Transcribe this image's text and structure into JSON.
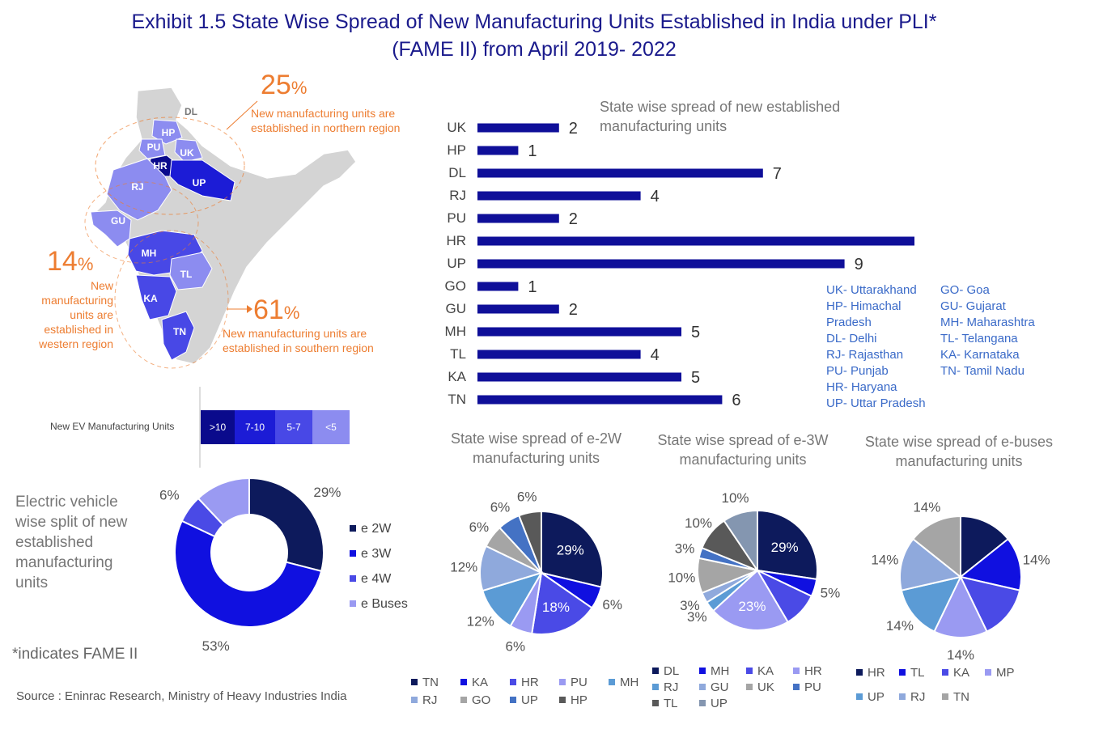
{
  "title_line1": "Exhibit 1.5 State Wise Spread of New Manufacturing Units Established in India under PLI*",
  "title_line2": "(FAME II) from April 2019- 2022",
  "map": {
    "labels": [
      "DL",
      "HP",
      "PU",
      "UK",
      "HR",
      "UP",
      "RJ",
      "GU",
      "MH",
      "TL",
      "KA",
      "TN"
    ],
    "north_pct": "25",
    "north_text": "New manufacturing units are established in northern region",
    "west_pct": "14",
    "west_text": "New manufacturing units are established in western region",
    "south_pct": "61",
    "south_text": "New manufacturing units are established in southern region",
    "pct_sign": "%"
  },
  "scale": {
    "label": "New EV Manufacturing Units",
    "cells": [
      {
        "text": ">10",
        "color": "#0a0a8c"
      },
      {
        "text": "7-10",
        "color": "#1c1cd6"
      },
      {
        "text": "5-7",
        "color": "#4848e6"
      },
      {
        "text": "<5",
        "color": "#8c8cf0"
      }
    ]
  },
  "abbreviations": {
    "col1": [
      "UK- Uttarakhand",
      "HP- Himachal",
      "Pradesh",
      "DL- Delhi",
      "RJ- Rajasthan",
      "PU- Punjab",
      "HR- Haryana",
      "UP- Uttar Pradesh"
    ],
    "col2": [
      "GO- Goa",
      "GU- Gujarat",
      "MH- Maharashtra",
      "TL- Telangana",
      "KA- Karnataka",
      "TN- Tamil Nadu"
    ]
  },
  "footnote": "*indicates FAME II",
  "source": "Source : Eninrac Research, Ministry of Heavy Industries India",
  "chart_data": [
    {
      "type": "bar",
      "orientation": "horizontal",
      "title": "State wise spread of new established manufacturing units",
      "categories": [
        "UK",
        "HP",
        "DL",
        "RJ",
        "PU",
        "HR",
        "UP",
        "GO",
        "GU",
        "MH",
        "TL",
        "KA",
        "TN"
      ],
      "values": [
        2,
        1,
        7,
        4,
        2,
        11,
        9,
        1,
        2,
        5,
        4,
        5,
        6
      ],
      "color": "#0f0f99"
    },
    {
      "type": "pie",
      "variant": "donut",
      "title": "Electric vehicle wise split of new established manufacturing units",
      "labels": [
        "e 2W",
        "e 3W",
        "e 4W",
        "e Buses"
      ],
      "values": [
        29,
        53,
        6,
        12
      ],
      "value_labels": [
        "29%",
        "53%",
        "6%",
        "12%"
      ],
      "colors": [
        "#0d1a5c",
        "#1010e0",
        "#4a4ae6",
        "#9a9af2"
      ],
      "legend_position": "right"
    },
    {
      "type": "pie",
      "title": "State wise spread of e-2W manufacturing units",
      "labels": [
        "TN",
        "KA",
        "HR",
        "PU",
        "MH",
        "RJ",
        "GO",
        "UP",
        "HP"
      ],
      "values": [
        29,
        6,
        18,
        6,
        12,
        12,
        6,
        6,
        6
      ],
      "value_labels": [
        "29%",
        "6%",
        "18%",
        "6%",
        "12%",
        "12%",
        "6%",
        "6%",
        "6%"
      ],
      "colors": [
        "#0d1a5c",
        "#1010e0",
        "#4a4ae6",
        "#9a9af2",
        "#5b9bd5",
        "#8fa9dc",
        "#a5a5a5",
        "#4472c4",
        "#595959"
      ],
      "legend_position": "bottom"
    },
    {
      "type": "pie",
      "title": "State wise spread of e-3W manufacturing units",
      "labels": [
        "DL",
        "MH",
        "KA",
        "HR",
        "RJ",
        "GU",
        "UK",
        "PU",
        "TL",
        "UP"
      ],
      "values": [
        29,
        5,
        10,
        23,
        3,
        3,
        10,
        3,
        10,
        10
      ],
      "value_labels": [
        "29%",
        "5%",
        "",
        "23%",
        "3%",
        "3%",
        "10%",
        "3%",
        "10%",
        "10%"
      ],
      "colors": [
        "#0d1a5c",
        "#1010e0",
        "#4a4ae6",
        "#9a9af2",
        "#5b9bd5",
        "#8fa9dc",
        "#a5a5a5",
        "#4472c4",
        "#595959",
        "#8496b0"
      ],
      "legend_position": "bottom"
    },
    {
      "type": "pie",
      "title": "State wise spread of e-buses manufacturing units",
      "labels": [
        "HR",
        "TL",
        "KA",
        "MP",
        "UP",
        "RJ",
        "TN"
      ],
      "values": [
        14,
        14,
        14,
        14,
        14,
        14,
        14
      ],
      "value_labels": [
        "",
        "14%",
        "",
        "14%",
        "14%",
        "14%",
        "14%"
      ],
      "colors": [
        "#0d1a5c",
        "#1010e0",
        "#4a4ae6",
        "#9a9af2",
        "#5b9bd5",
        "#8fa9dc",
        "#a5a5a5"
      ],
      "legend_position": "bottom"
    }
  ]
}
